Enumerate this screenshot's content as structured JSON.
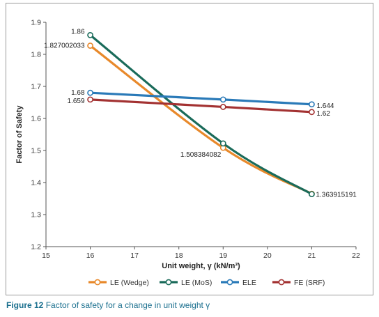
{
  "caption": {
    "label": "Figure 12",
    "text": "Factor of safety for a change in unit weight γ"
  },
  "chart_data": {
    "type": "line",
    "xlabel": "Unit weight, γ (kN/m³)",
    "ylabel": "Factor of Safety",
    "xlim": [
      15,
      22
    ],
    "ylim": [
      1.2,
      1.9
    ],
    "xticks": [
      "15",
      "16",
      "17",
      "18",
      "19",
      "20",
      "21",
      "22"
    ],
    "yticks": [
      "1.2",
      "1.3",
      "1.4",
      "1.5",
      "1.6",
      "1.7",
      "1.8",
      "1.9"
    ],
    "grid": false,
    "legend_position": "bottom",
    "x": [
      16,
      19,
      21
    ],
    "series": [
      {
        "name": "LE (Wedge)",
        "color": "#e8892b",
        "values": [
          1.827002033,
          1.508384082,
          1.365
        ],
        "labels": [
          "1.827002033",
          "1.508384082",
          ""
        ]
      },
      {
        "name": "LE (MoS)",
        "color": "#1a6b5a",
        "values": [
          1.86,
          1.522,
          1.363915191
        ],
        "labels": [
          "1.86",
          "",
          "1.363915191"
        ]
      },
      {
        "name": "ELE",
        "color": "#2a7ab8",
        "values": [
          1.68,
          1.659,
          1.644
        ],
        "labels": [
          "1.68",
          "",
          "1.644"
        ]
      },
      {
        "name": "FE (SRF)",
        "color": "#a33232",
        "values": [
          1.659,
          1.636,
          1.62
        ],
        "labels": [
          "1.659",
          "",
          "1.62"
        ]
      }
    ]
  }
}
